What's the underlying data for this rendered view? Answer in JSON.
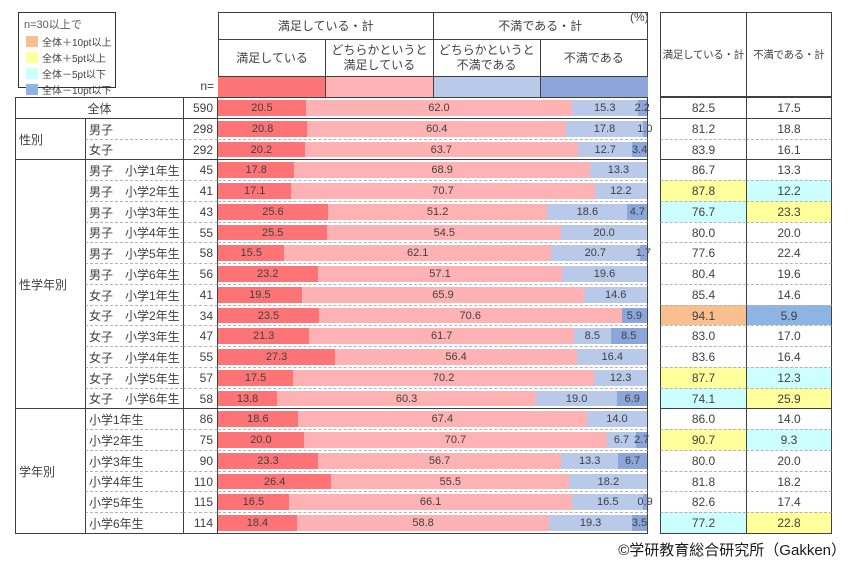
{
  "page": {
    "unit_label": "(%)",
    "n_eq_label": "n=",
    "footer": "©学研教育総合研究所（Gakken）"
  },
  "legend": {
    "title": "n=30以上で",
    "items": [
      {
        "name": "plus10",
        "label": "全体＋10pt以上",
        "color": "#FABF8F"
      },
      {
        "name": "plus5",
        "label": "全体＋5pt以上",
        "color": "#FFFF9B"
      },
      {
        "name": "minus5",
        "label": "全体－5pt以下",
        "color": "#CCFFFF"
      },
      {
        "name": "minus10",
        "label": "全体－10pt以下",
        "color": "#8DB4E2"
      }
    ]
  },
  "chart_data": {
    "type": "bar",
    "stacked": true,
    "orientation": "horizontal",
    "unit": "%",
    "x_max": 100,
    "header_groups": [
      {
        "label": "満足している・計"
      },
      {
        "label": "不満である・計"
      }
    ],
    "segments": [
      {
        "label": "満足している",
        "color": "#FE7476"
      },
      {
        "label": "どちらかというと\n満足している",
        "color": "#FFB2B4"
      },
      {
        "label": "どちらかというと\n不満である",
        "color": "#B9C9E9"
      },
      {
        "label": "不満である",
        "color": "#8CA6DC"
      }
    ],
    "summary_columns": [
      "満足している・計",
      "不満である・計"
    ],
    "highlight_colors": {
      "plus10": "#FABF8F",
      "plus5": "#FFFF9B",
      "minus5": "#CCFFFF",
      "minus10": "#8DB4E2"
    },
    "row_groups": [
      {
        "label": "",
        "count": 1,
        "merged": true
      },
      {
        "label": "性別",
        "count": 2
      },
      {
        "label": "性学年別",
        "count": 12
      },
      {
        "label": "学年別",
        "count": 6
      }
    ],
    "rows": [
      {
        "label": "全体",
        "n": 590,
        "values": [
          20.5,
          62.0,
          15.3,
          2.2
        ],
        "sat_total": 82.5,
        "dis_total": 17.5,
        "sat_hl": null,
        "dis_hl": null
      },
      {
        "label": "男子",
        "n": 298,
        "values": [
          20.8,
          60.4,
          17.8,
          1.0
        ],
        "sat_total": 81.2,
        "dis_total": 18.8,
        "sat_hl": null,
        "dis_hl": null
      },
      {
        "label": "女子",
        "n": 292,
        "values": [
          20.2,
          63.7,
          12.7,
          3.4
        ],
        "sat_total": 83.9,
        "dis_total": 16.1,
        "sat_hl": null,
        "dis_hl": null
      },
      {
        "label": "男子　小学1年生",
        "n": 45,
        "values": [
          17.8,
          68.9,
          13.3,
          0
        ],
        "sat_total": 86.7,
        "dis_total": 13.3,
        "sat_hl": null,
        "dis_hl": null
      },
      {
        "label": "男子　小学2年生",
        "n": 41,
        "values": [
          17.1,
          70.7,
          12.2,
          0
        ],
        "sat_total": 87.8,
        "dis_total": 12.2,
        "sat_hl": "plus5",
        "dis_hl": "minus5"
      },
      {
        "label": "男子　小学3年生",
        "n": 43,
        "values": [
          25.6,
          51.2,
          18.6,
          4.7
        ],
        "sat_total": 76.7,
        "dis_total": 23.3,
        "sat_hl": "minus5",
        "dis_hl": "plus5"
      },
      {
        "label": "男子　小学4年生",
        "n": 55,
        "values": [
          25.5,
          54.5,
          20.0,
          0
        ],
        "sat_total": 80.0,
        "dis_total": 20.0,
        "sat_hl": null,
        "dis_hl": null
      },
      {
        "label": "男子　小学5年生",
        "n": 58,
        "values": [
          15.5,
          62.1,
          20.7,
          1.7
        ],
        "sat_total": 77.6,
        "dis_total": 22.4,
        "sat_hl": null,
        "dis_hl": null
      },
      {
        "label": "男子　小学6年生",
        "n": 56,
        "values": [
          23.2,
          57.1,
          19.6,
          0
        ],
        "sat_total": 80.4,
        "dis_total": 19.6,
        "sat_hl": null,
        "dis_hl": null
      },
      {
        "label": "女子　小学1年生",
        "n": 41,
        "values": [
          19.5,
          65.9,
          14.6,
          0
        ],
        "sat_total": 85.4,
        "dis_total": 14.6,
        "sat_hl": null,
        "dis_hl": null
      },
      {
        "label": "女子　小学2年生",
        "n": 34,
        "values": [
          23.5,
          70.6,
          0,
          5.9
        ],
        "sat_total": 94.1,
        "dis_total": 5.9,
        "sat_hl": "plus10",
        "dis_hl": "minus10"
      },
      {
        "label": "女子　小学3年生",
        "n": 47,
        "values": [
          21.3,
          61.7,
          8.5,
          8.5
        ],
        "sat_total": 83.0,
        "dis_total": 17.0,
        "sat_hl": null,
        "dis_hl": null
      },
      {
        "label": "女子　小学4年生",
        "n": 55,
        "values": [
          27.3,
          56.4,
          16.4,
          0
        ],
        "sat_total": 83.6,
        "dis_total": 16.4,
        "sat_hl": null,
        "dis_hl": null
      },
      {
        "label": "女子　小学5年生",
        "n": 57,
        "values": [
          17.5,
          70.2,
          12.3,
          0
        ],
        "sat_total": 87.7,
        "dis_total": 12.3,
        "sat_hl": "plus5",
        "dis_hl": "minus5"
      },
      {
        "label": "女子　小学6年生",
        "n": 58,
        "values": [
          13.8,
          60.3,
          19.0,
          6.9
        ],
        "sat_total": 74.1,
        "dis_total": 25.9,
        "sat_hl": "minus5",
        "dis_hl": "plus5"
      },
      {
        "label": "小学1年生",
        "n": 86,
        "values": [
          18.6,
          67.4,
          14.0,
          0
        ],
        "sat_total": 86.0,
        "dis_total": 14.0,
        "sat_hl": null,
        "dis_hl": null
      },
      {
        "label": "小学2年生",
        "n": 75,
        "values": [
          20.0,
          70.7,
          6.7,
          2.7
        ],
        "sat_total": 90.7,
        "dis_total": 9.3,
        "sat_hl": "plus5",
        "dis_hl": "minus5"
      },
      {
        "label": "小学3年生",
        "n": 90,
        "values": [
          23.3,
          56.7,
          13.3,
          6.7
        ],
        "sat_total": 80.0,
        "dis_total": 20.0,
        "sat_hl": null,
        "dis_hl": null
      },
      {
        "label": "小学4年生",
        "n": 110,
        "values": [
          26.4,
          55.5,
          18.2,
          0
        ],
        "sat_total": 81.8,
        "dis_total": 18.2,
        "sat_hl": null,
        "dis_hl": null
      },
      {
        "label": "小学5年生",
        "n": 115,
        "values": [
          16.5,
          66.1,
          16.5,
          0.9
        ],
        "sat_total": 82.6,
        "dis_total": 17.4,
        "sat_hl": null,
        "dis_hl": null
      },
      {
        "label": "小学6年生",
        "n": 114,
        "values": [
          18.4,
          58.8,
          19.3,
          3.5
        ],
        "sat_total": 77.2,
        "dis_total": 22.8,
        "sat_hl": "minus5",
        "dis_hl": "plus5"
      }
    ]
  }
}
